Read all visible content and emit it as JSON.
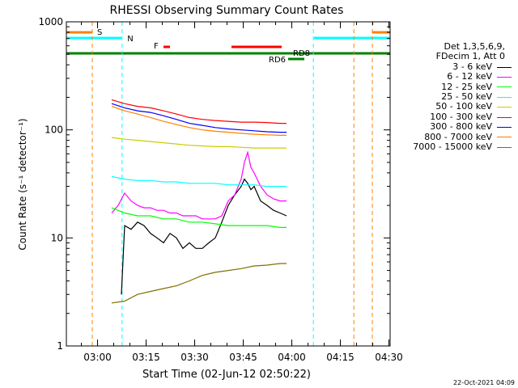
{
  "chart_data": {
    "type": "line",
    "title": "RHESSI Observing Summary Count Rates",
    "xlabel": "Start Time (02-Jun-12 02:50:22)",
    "ylabel": "Count Rate (s⁻¹ detector⁻¹)",
    "y_scale": "log",
    "ylim": [
      1,
      1000
    ],
    "xlim_minutes": [
      0,
      100
    ],
    "x_tick_labels": [
      "03:00",
      "03:15",
      "03:30",
      "03:45",
      "04:00",
      "04:15",
      "04:30"
    ],
    "x_tick_minutes": [
      9.63,
      24.63,
      39.63,
      54.63,
      69.63,
      84.63,
      99.63
    ],
    "y_tick_labels": [
      "1",
      "10",
      "100",
      "1000"
    ],
    "y_tick_values": [
      1,
      10,
      100,
      1000
    ],
    "legend_header": [
      "Det 1,3,5,6,9,",
      "FDecim 1, Att 0"
    ],
    "series": [
      {
        "name": "3 - 6 keV",
        "color": "#000000",
        "x": [
          17,
          18,
          20,
          22,
          24,
          26,
          28,
          30,
          32,
          34,
          36,
          38,
          40,
          42,
          44,
          46,
          48,
          50,
          52,
          54,
          55,
          56,
          57,
          58,
          60,
          62,
          64,
          66,
          68
        ],
        "y": [
          3.0,
          13,
          12,
          14,
          13,
          11,
          10,
          9,
          11,
          10,
          8,
          9,
          8,
          8,
          9,
          10,
          14,
          20,
          25,
          30,
          35,
          32,
          28,
          30,
          22,
          20,
          18,
          17,
          16
        ]
      },
      {
        "name": "6 - 12 keV",
        "color": "#ff00ff",
        "x": [
          14,
          16,
          18,
          20,
          22,
          24,
          26,
          28,
          30,
          32,
          34,
          36,
          38,
          40,
          42,
          44,
          46,
          48,
          50,
          52,
          54,
          55,
          56,
          57,
          58,
          60,
          62,
          64,
          66,
          68
        ],
        "y": [
          17,
          20,
          26,
          22,
          20,
          19,
          19,
          18,
          18,
          17,
          17,
          16,
          16,
          16,
          15,
          15,
          15,
          16,
          22,
          25,
          35,
          50,
          62,
          45,
          40,
          30,
          25,
          23,
          22,
          22
        ]
      },
      {
        "name": "12 - 25 keV",
        "color": "#00ff00",
        "x": [
          14,
          18,
          22,
          26,
          30,
          34,
          38,
          42,
          46,
          50,
          54,
          58,
          62,
          66,
          68
        ],
        "y": [
          19,
          17,
          16,
          16,
          15,
          15,
          14,
          14,
          13.5,
          13,
          13,
          13,
          13,
          12.5,
          12.5
        ]
      },
      {
        "name": "25 - 50 keV",
        "color": "#00ffff",
        "x": [
          14,
          18,
          22,
          26,
          30,
          34,
          38,
          42,
          46,
          50,
          54,
          58,
          62,
          66,
          68
        ],
        "y": [
          37,
          35,
          34,
          34,
          33,
          33,
          32,
          32,
          32,
          31,
          31,
          31,
          30,
          30,
          30
        ]
      },
      {
        "name": "50 - 100 keV",
        "color": "#cccc00",
        "x": [
          14,
          18,
          22,
          26,
          30,
          34,
          38,
          42,
          46,
          50,
          54,
          58,
          62,
          66,
          68
        ],
        "y": [
          85,
          82,
          80,
          78,
          76,
          74,
          72,
          71,
          70,
          70,
          69,
          68,
          68,
          68,
          68
        ]
      },
      {
        "name": "100 - 300 keV",
        "color": "#ff0000",
        "x": [
          14,
          18,
          22,
          26,
          30,
          34,
          38,
          42,
          46,
          50,
          54,
          58,
          62,
          66,
          68
        ],
        "y": [
          190,
          175,
          165,
          160,
          150,
          140,
          130,
          125,
          122,
          120,
          118,
          118,
          117,
          115,
          115
        ]
      },
      {
        "name": "300 - 800 keV",
        "color": "#0000ff",
        "x": [
          14,
          18,
          22,
          26,
          30,
          34,
          38,
          42,
          46,
          50,
          54,
          58,
          62,
          66,
          68
        ],
        "y": [
          175,
          160,
          150,
          145,
          135,
          125,
          115,
          110,
          105,
          102,
          100,
          98,
          96,
          95,
          95
        ]
      },
      {
        "name": "800 - 7000 keV",
        "color": "#ff8000",
        "x": [
          14,
          18,
          22,
          26,
          30,
          34,
          38,
          42,
          46,
          50,
          54,
          58,
          62,
          66,
          68
        ],
        "y": [
          165,
          150,
          140,
          130,
          120,
          112,
          105,
          100,
          97,
          95,
          93,
          91,
          90,
          89,
          89
        ]
      },
      {
        "name": "7000 - 15000 keV",
        "color": "#807000",
        "x": [
          14,
          18,
          22,
          26,
          30,
          34,
          38,
          42,
          46,
          50,
          54,
          58,
          62,
          66,
          68
        ],
        "y": [
          2.5,
          2.6,
          3.0,
          3.2,
          3.4,
          3.6,
          4.0,
          4.5,
          4.8,
          5.0,
          5.2,
          5.5,
          5.6,
          5.8,
          5.8
        ]
      }
    ],
    "flag_labels": [
      "S",
      "N",
      "F",
      "RD6",
      "RD8"
    ],
    "grid": false,
    "legend_position": "right"
  },
  "footer": {
    "date_stamp": "22-Oct-2021 04:09"
  }
}
